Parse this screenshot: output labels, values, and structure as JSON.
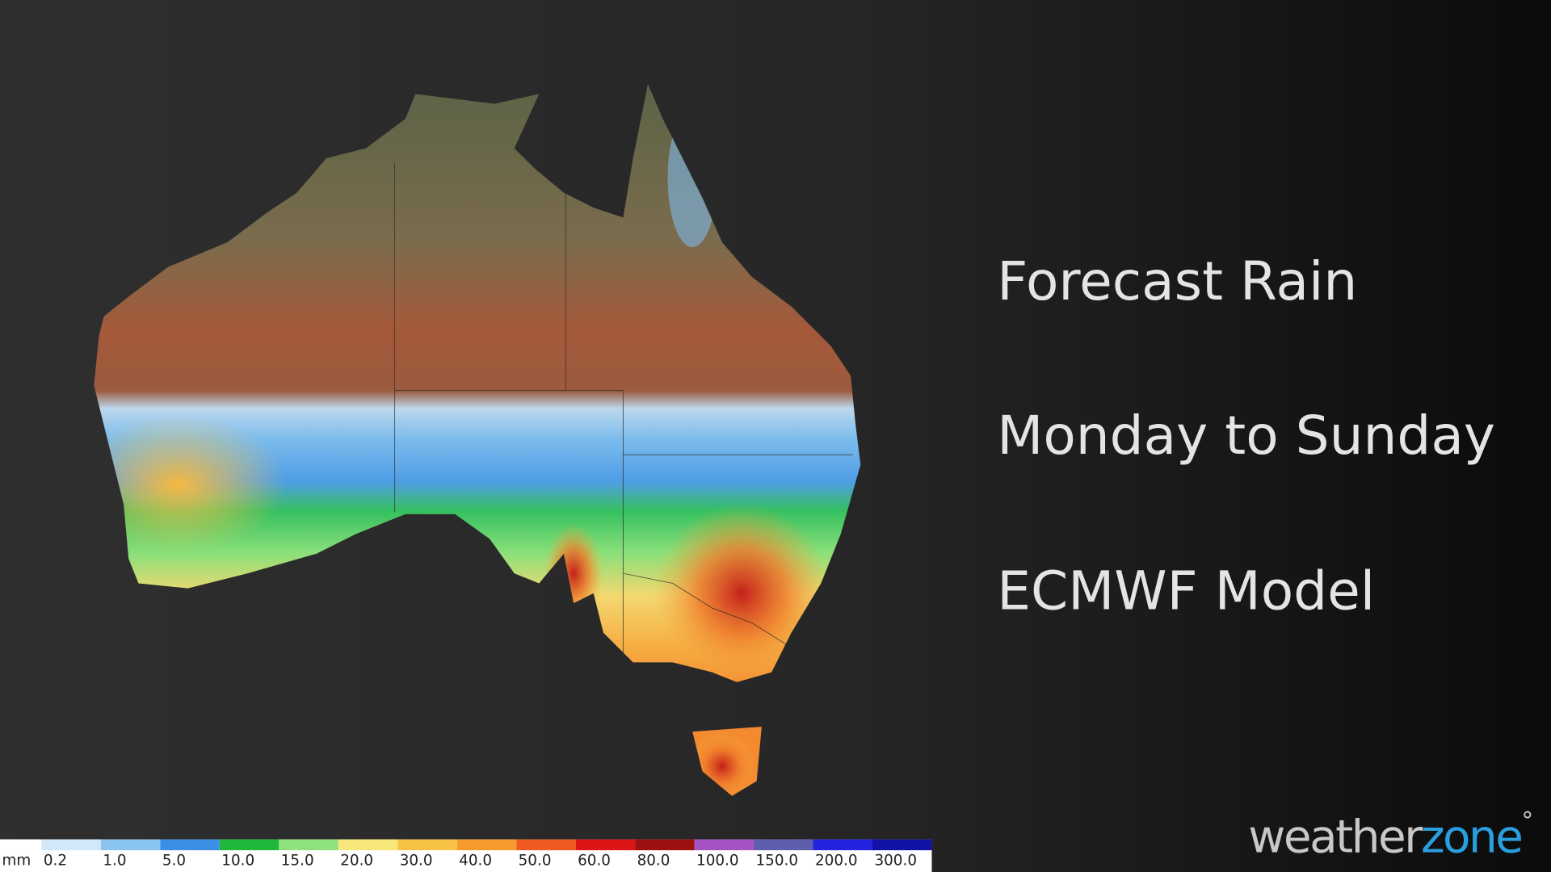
{
  "headings": [
    "Forecast Rain",
    "Monday to Sunday",
    "ECMWF Model"
  ],
  "legend": {
    "unit": "mm",
    "labels": [
      "0.2",
      "1.0",
      "5.0",
      "10.0",
      "15.0",
      "20.0",
      "30.0",
      "40.0",
      "50.0",
      "60.0",
      "80.0",
      "100.0",
      "150.0",
      "200.0",
      "300.0"
    ],
    "colors": [
      "#ffffff",
      "#d2e8f8",
      "#8ac4f0",
      "#3b8fe6",
      "#1fb83a",
      "#8ee27e",
      "#f7e77a",
      "#f8c244",
      "#f79a2e",
      "#ef5a22",
      "#dc1616",
      "#9e0f0f",
      "#a552c2",
      "#5e5eae",
      "#2323e0",
      "#1212a8"
    ]
  },
  "logo": {
    "word": "weather",
    "accent": "zone",
    "mark": "°"
  }
}
